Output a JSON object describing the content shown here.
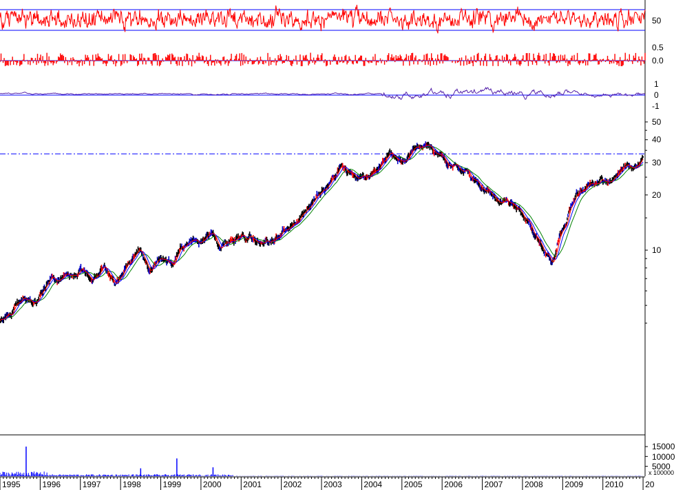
{
  "chart_data": {
    "type": "line",
    "title": "",
    "price_scale": "log",
    "x_tick_labels": [
      "1995",
      "1996",
      "1997",
      "1998",
      "1999",
      "2000",
      "2001",
      "2002",
      "2003",
      "2004",
      "2005",
      "2006",
      "2007",
      "2008",
      "2009",
      "2010",
      "20"
    ],
    "price_axis": {
      "tick_labels": [
        "50",
        "40",
        "30",
        "20",
        "10"
      ],
      "ylim": [
        3.5,
        60
      ]
    },
    "reference_level": 33.5,
    "price": {
      "x": [
        1995.0,
        1995.3,
        1995.6,
        1995.9,
        1996.15,
        1996.5,
        1996.75,
        1997.0,
        1997.3,
        1997.6,
        1997.85,
        1998.2,
        1998.5,
        1998.7,
        1999.0,
        1999.3,
        1999.5,
        1999.75,
        2000.0,
        2000.25,
        2000.5,
        2000.8,
        2001.1,
        2001.4,
        2001.7,
        2002.0,
        2002.3,
        2002.6,
        2002.9,
        2003.2,
        2003.5,
        2003.8,
        2004.1,
        2004.4,
        2004.7,
        2004.9,
        2005.1,
        2005.35,
        2005.6,
        2005.85,
        2006.0,
        2006.3,
        2006.5,
        2006.75,
        2007.0,
        2007.3,
        2007.6,
        2007.9,
        2008.2,
        2008.5,
        2008.75,
        2008.9,
        2009.1,
        2009.3,
        2009.6,
        2009.9,
        2010.2,
        2010.5,
        2010.8,
        2011.0
      ],
      "y": [
        4.1,
        4.6,
        5.7,
        5.2,
        6.6,
        7.3,
        7.0,
        7.7,
        6.9,
        8.2,
        6.8,
        8.5,
        10.0,
        7.8,
        9.3,
        8.4,
        10.3,
        11.1,
        11.2,
        12.5,
        10.3,
        11.7,
        12.0,
        11.6,
        11.0,
        12.5,
        14.0,
        16.2,
        19.5,
        22.5,
        28.5,
        25.0,
        24.0,
        27.0,
        34.0,
        32.5,
        29.5,
        36.0,
        37.5,
        34.5,
        31.0,
        29.0,
        28.0,
        24.5,
        22.0,
        19.5,
        17.5,
        16.5,
        13.5,
        10.5,
        8.5,
        11.5,
        15.0,
        20.0,
        22.0,
        24.0,
        25.5,
        27.0,
        30.0,
        33.5
      ]
    },
    "series": [
      {
        "name": "",
        "color": "#ff0000"
      },
      {
        "name": "",
        "color": "#0000ff"
      },
      {
        "name": "",
        "color": "#008000"
      }
    ],
    "volume": {
      "tick_labels": [
        "15000",
        "10000",
        "5000"
      ],
      "multiplier_label": "x 100000",
      "spikes": [
        {
          "x": 1995.65,
          "v": 15000
        },
        {
          "x": 1999.4,
          "v": 9000
        },
        {
          "x": 1998.5,
          "v": 4000
        },
        {
          "x": 2000.3,
          "v": 4500
        }
      ]
    },
    "indicators": [
      {
        "name": "",
        "tick_labels": [
          "50"
        ]
      },
      {
        "name": "",
        "tick_labels": [
          "0.5",
          "0.0"
        ]
      },
      {
        "name": "",
        "tick_labels": [
          "1",
          "0",
          "-1"
        ]
      }
    ]
  }
}
